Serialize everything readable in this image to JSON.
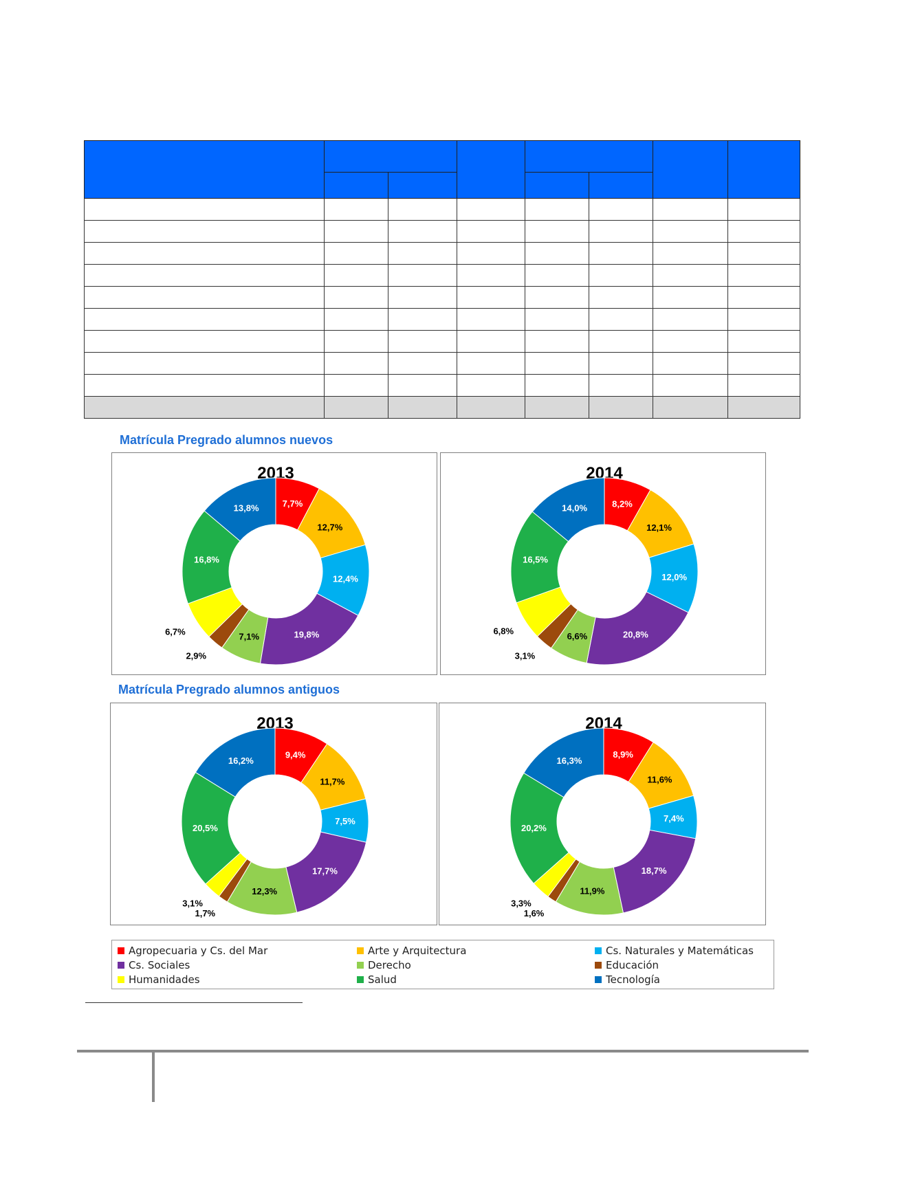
{
  "sections": {
    "new_title": "Matrícula Pregrado alumnos nuevos",
    "old_title": "Matrícula Pregrado alumnos antiguos"
  },
  "colors": {
    "Agropecuaria": "#ff0000",
    "Arte": "#ffc000",
    "Naturales": "#00b0f0",
    "Sociales": "#7030a0",
    "Derecho": "#92d050",
    "Educacion": "#9c4a0c",
    "Humanidades": "#ffff00",
    "Salud": "#1fb04a",
    "Tecnologia": "#0070c0"
  },
  "legend": {
    "items": [
      {
        "label": "Agropecuaria y Cs. del Mar",
        "key": "Agropecuaria"
      },
      {
        "label": "Arte y Arquitectura",
        "key": "Arte"
      },
      {
        "label": "Cs. Naturales y Matemáticas",
        "key": "Naturales"
      },
      {
        "label": "Cs. Sociales",
        "key": "Sociales"
      },
      {
        "label": "Derecho",
        "key": "Derecho"
      },
      {
        "label": "Educación",
        "key": "Educacion"
      },
      {
        "label": "Humanidades",
        "key": "Humanidades"
      },
      {
        "label": "Salud",
        "key": "Salud"
      },
      {
        "label": "Tecnología",
        "key": "Tecnologia"
      }
    ]
  },
  "chart_data": [
    {
      "type": "pie",
      "title": "2013",
      "group": "nuevos",
      "keys": [
        "Agropecuaria",
        "Arte",
        "Naturales",
        "Sociales",
        "Derecho",
        "Educacion",
        "Humanidades",
        "Salud",
        "Tecnologia"
      ],
      "values": [
        7.7,
        12.7,
        12.4,
        19.8,
        7.1,
        2.9,
        6.7,
        16.8,
        13.8
      ],
      "labels": [
        "7,7%",
        "12,7%",
        "12,4%",
        "19,8%",
        "7,1%",
        "2,9%",
        "6,7%",
        "16,8%",
        "13,8%"
      ]
    },
    {
      "type": "pie",
      "title": "2014",
      "group": "nuevos",
      "keys": [
        "Agropecuaria",
        "Arte",
        "Naturales",
        "Sociales",
        "Derecho",
        "Educacion",
        "Humanidades",
        "Salud",
        "Tecnologia"
      ],
      "values": [
        8.2,
        12.1,
        12.0,
        20.8,
        6.6,
        3.1,
        6.8,
        16.5,
        14.0
      ],
      "labels": [
        "8,2%",
        "12,1%",
        "12,0%",
        "20,8%",
        "6,6%",
        "3,1%",
        "6,8%",
        "16,5%",
        "14,0%"
      ]
    },
    {
      "type": "pie",
      "title": "2013",
      "group": "antiguos",
      "keys": [
        "Agropecuaria",
        "Arte",
        "Naturales",
        "Sociales",
        "Derecho",
        "Educacion",
        "Humanidades",
        "Salud",
        "Tecnologia"
      ],
      "values": [
        9.4,
        11.7,
        7.5,
        17.7,
        12.3,
        1.7,
        3.1,
        20.5,
        16.2
      ],
      "labels": [
        "9,4%",
        "11,7%",
        "7,5%",
        "17,7%",
        "12,3%",
        "1,7%",
        "3,1%",
        "20,5%",
        "16,2%"
      ]
    },
    {
      "type": "pie",
      "title": "2014",
      "group": "antiguos",
      "keys": [
        "Agropecuaria",
        "Arte",
        "Naturales",
        "Sociales",
        "Derecho",
        "Educacion",
        "Humanidades",
        "Salud",
        "Tecnologia"
      ],
      "values": [
        8.9,
        11.6,
        7.4,
        18.7,
        11.9,
        1.6,
        3.3,
        20.2,
        16.3
      ],
      "labels": [
        "8,9%",
        "11,6%",
        "7,4%",
        "18,7%",
        "11,9%",
        "1,6%",
        "3,3%",
        "20,2%",
        "16,3%"
      ]
    }
  ]
}
